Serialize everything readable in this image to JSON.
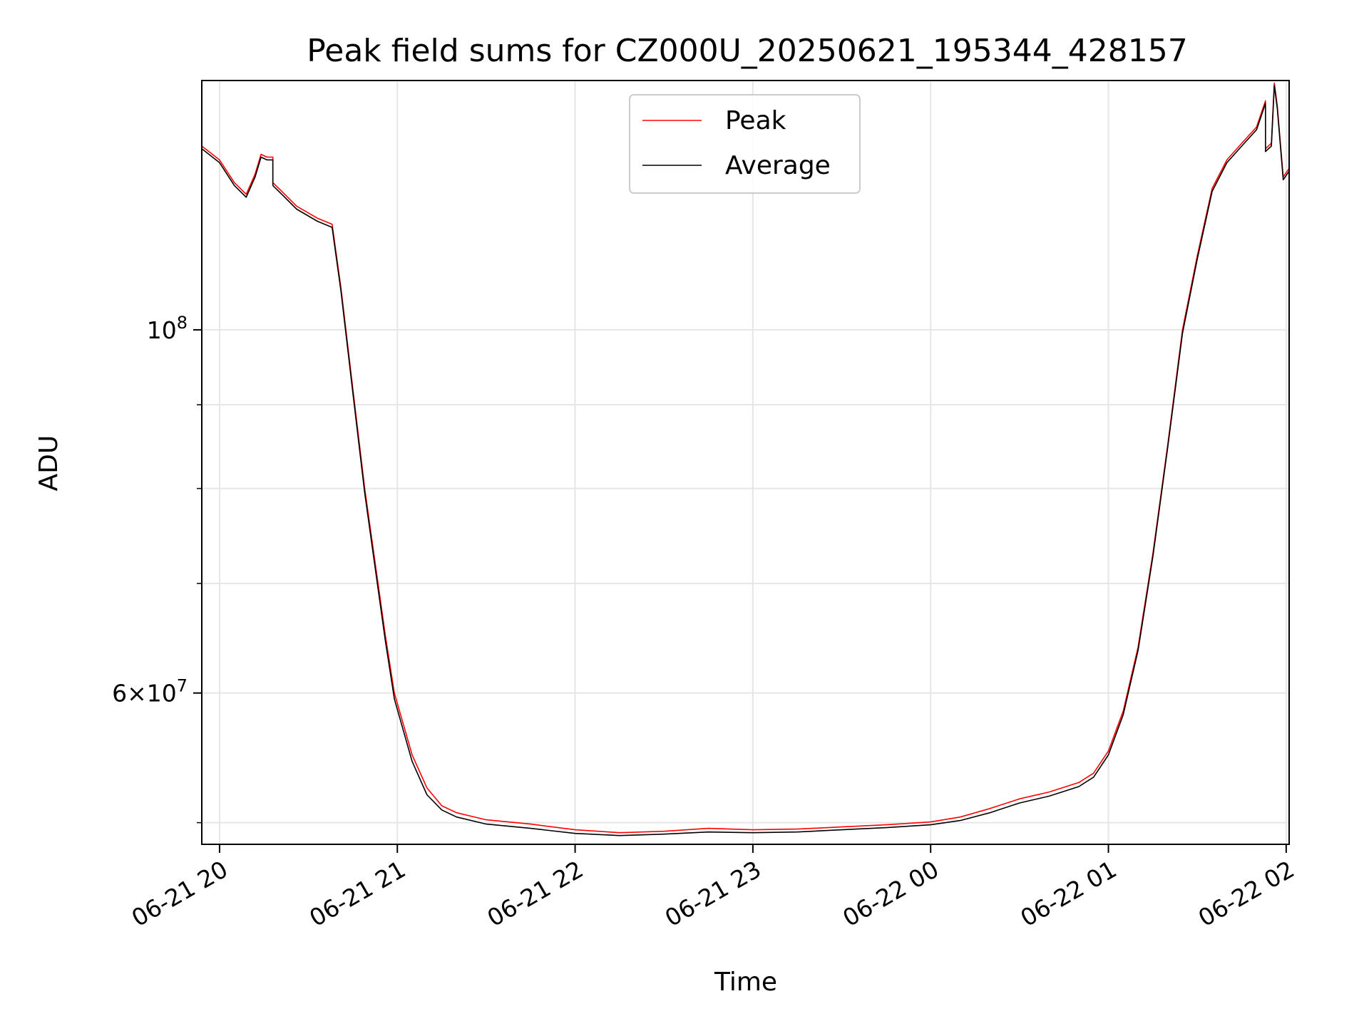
{
  "chart_data": {
    "type": "line",
    "title": "Peak field sums for CZ000U_20250621_195344_428157",
    "xlabel": "Time",
    "ylabel": "ADU",
    "x_scale": "time",
    "y_scale": "log",
    "xlim": [
      "06-21 19:54",
      "06-22 02:01"
    ],
    "ylim": [
      48500000,
      142000000
    ],
    "grid": true,
    "legend_position": "top-center",
    "x_ticks": [
      "06-21 20",
      "06-21 21",
      "06-21 22",
      "06-21 23",
      "06-22 00",
      "06-22 01",
      "06-22 02"
    ],
    "x_tick_times": [
      "06-21 20:00",
      "06-21 21:00",
      "06-21 22:00",
      "06-21 23:00",
      "06-22 00:00",
      "06-22 01:00",
      "06-22 02:00"
    ],
    "y_ticks_major": [
      {
        "value": 100000000,
        "base": "10",
        "exp": "8",
        "mantissa": ""
      },
      {
        "value": 60000000,
        "base": "10",
        "exp": "7",
        "mantissa": "6"
      }
    ],
    "y_ticks_minor": [
      50000000,
      70000000,
      80000000,
      90000000
    ],
    "x": [
      "06-21 19:54",
      "06-21 20:00",
      "06-21 20:05",
      "06-21 20:09",
      "06-21 20:12",
      "06-21 20:14",
      "06-21 20:16",
      "06-21 20:18",
      "06-21 20:18",
      "06-21 20:21",
      "06-21 20:26",
      "06-21 20:33",
      "06-21 20:38",
      "06-21 20:41",
      "06-21 20:45",
      "06-21 20:49",
      "06-21 20:53",
      "06-21 20:56",
      "06-21 20:59",
      "06-21 21:05",
      "06-21 21:10",
      "06-21 21:15",
      "06-21 21:20",
      "06-21 21:30",
      "06-21 21:45",
      "06-21 22:00",
      "06-21 22:15",
      "06-21 22:30",
      "06-21 22:45",
      "06-21 23:00",
      "06-21 23:15",
      "06-21 23:30",
      "06-21 23:45",
      "06-22 00:00",
      "06-22 00:10",
      "06-22 00:20",
      "06-22 00:30",
      "06-22 00:40",
      "06-22 00:50",
      "06-22 00:55",
      "06-22 01:00",
      "06-22 01:05",
      "06-22 01:10",
      "06-22 01:15",
      "06-22 01:20",
      "06-22 01:25",
      "06-22 01:30",
      "06-22 01:35",
      "06-22 01:40",
      "06-22 01:45",
      "06-22 01:50",
      "06-22 01:53",
      "06-22 01:53",
      "06-22 01:55",
      "06-22 01:56",
      "06-22 01:57",
      "06-22 01:59",
      "06-22 02:01"
    ],
    "series": [
      {
        "name": "Peak",
        "color": "#ff0000",
        "values": [
          129500000,
          127000000,
          123000000,
          121000000,
          124500000,
          128000000,
          127500000,
          127500000,
          123000000,
          121500000,
          119000000,
          117000000,
          116000000,
          106000000,
          92000000,
          80000000,
          71000000,
          65000000,
          60000000,
          55000000,
          52500000,
          51200000,
          50700000,
          50200000,
          49900000,
          49500000,
          49300000,
          49400000,
          49600000,
          49500000,
          49550000,
          49700000,
          49850000,
          50050000,
          50400000,
          51000000,
          51700000,
          52200000,
          52900000,
          53600000,
          55300000,
          58500000,
          64000000,
          73000000,
          85000000,
          100000000,
          111000000,
          122000000,
          127000000,
          130000000,
          133000000,
          138000000,
          129000000,
          130000000,
          141500000,
          137000000,
          124000000,
          125500000
        ]
      },
      {
        "name": "Average",
        "color": "#000000",
        "values": [
          129000000,
          126500000,
          122500000,
          120500000,
          124000000,
          127500000,
          127000000,
          127000000,
          122500000,
          121000000,
          118500000,
          116500000,
          115500000,
          105500000,
          91500000,
          79500000,
          70500000,
          64500000,
          59500000,
          54500000,
          52000000,
          50900000,
          50400000,
          49900000,
          49600000,
          49250000,
          49100000,
          49200000,
          49350000,
          49300000,
          49350000,
          49500000,
          49650000,
          49850000,
          50150000,
          50700000,
          51400000,
          51900000,
          52600000,
          53300000,
          55000000,
          58200000,
          63700000,
          72700000,
          84700000,
          99500000,
          110500000,
          121500000,
          126500000,
          129500000,
          132500000,
          137500000,
          128500000,
          129500000,
          141000000,
          136500000,
          123500000,
          125000000
        ]
      }
    ]
  }
}
